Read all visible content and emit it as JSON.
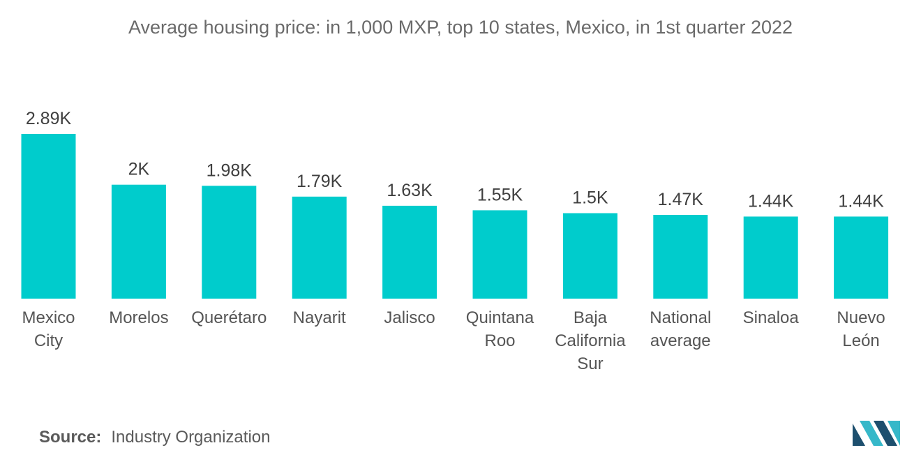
{
  "chart_data": {
    "type": "bar",
    "title": "Average housing price: in 1,000 MXP, top 10 states, Mexico, in 1st quarter 2022",
    "categories": [
      [
        "Mexico",
        "City"
      ],
      [
        "Morelos"
      ],
      [
        "Querétaro"
      ],
      [
        "Nayarit"
      ],
      [
        "Jalisco"
      ],
      [
        "Quintana",
        "Roo"
      ],
      [
        "Baja",
        "California",
        "Sur"
      ],
      [
        "National",
        "average"
      ],
      [
        "Sinaloa"
      ],
      [
        "Nuevo",
        "León"
      ]
    ],
    "values": [
      2890,
      2000,
      1980,
      1790,
      1630,
      1550,
      1500,
      1470,
      1440,
      1440
    ],
    "value_labels": [
      "2.89K",
      "2K",
      "1.98K",
      "1.79K",
      "1.63K",
      "1.55K",
      "1.5K",
      "1.47K",
      "1.44K",
      "1.44K"
    ],
    "xlabel": "",
    "ylabel": "",
    "ylim": [
      0,
      2890
    ],
    "grid": false,
    "bar_color": "#00cccc"
  },
  "source": {
    "label": "Source:",
    "text": "Industry Organization"
  },
  "colors": {
    "bar": "#00cccc",
    "logo_dark": "#1d4f6e",
    "logo_light": "#36b8c9"
  }
}
